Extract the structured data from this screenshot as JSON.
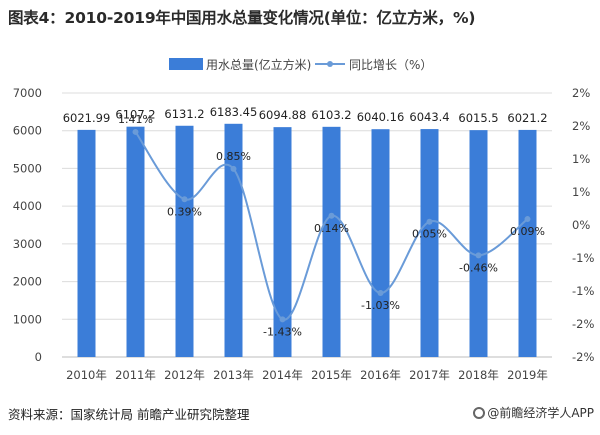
{
  "title": "图表4：2010-2019年中国用水总量变化情况(单位：亿立方米，%)",
  "footer": {
    "source": "资料来源：国家统计局 前瞻产业研究院整理",
    "brand": "@前瞻经济学人APP"
  },
  "colors": {
    "bar": "#3b7dd8",
    "line": "#6a9bd8",
    "grid": "#dcdcdc",
    "axis_text": "#444444"
  },
  "chart_data": {
    "type": "bar",
    "categories": [
      "2010年",
      "2011年",
      "2012年",
      "2013年",
      "2014年",
      "2015年",
      "2016年",
      "2017年",
      "2018年",
      "2019年"
    ],
    "series": [
      {
        "name": "用水总量(亿立方米)",
        "type": "bar",
        "axis": "left",
        "values": [
          6021.99,
          6107.2,
          6131.2,
          6183.45,
          6094.88,
          6103.2,
          6040.16,
          6043.4,
          6015.5,
          6021.2
        ],
        "labels": [
          "6021.99",
          "6107.2",
          "6131.2",
          "6183.45",
          "6094.88",
          "6103.2",
          "6040.16",
          "6043.4",
          "6015.5",
          "6021.2"
        ]
      },
      {
        "name": "同比增长（%）",
        "type": "line",
        "axis": "right",
        "values": [
          null,
          1.41,
          0.39,
          0.85,
          -1.43,
          0.14,
          -1.03,
          0.05,
          -0.46,
          0.09
        ],
        "labels": [
          "",
          "1.41%",
          "0.39%",
          "0.85%",
          "-1.43%",
          "0.14%",
          "-1.03%",
          "0.05%",
          "-0.46%",
          "0.09%"
        ]
      }
    ],
    "y_left": {
      "min": 0,
      "max": 7000,
      "ticks": [
        0,
        1000,
        2000,
        3000,
        4000,
        5000,
        6000,
        7000
      ],
      "tick_labels": [
        "0",
        "1000",
        "2000",
        "3000",
        "4000",
        "5000",
        "6000",
        "7000"
      ]
    },
    "y_right": {
      "min": -2,
      "max": 2,
      "ticks": [
        -2,
        -1.5,
        -1,
        -0.5,
        0,
        0.5,
        1,
        1.5,
        2
      ],
      "tick_labels": [
        "-2%",
        "-2%",
        "-1%",
        "-1%",
        "0%",
        "1%",
        "1%",
        "2%",
        "2%"
      ]
    },
    "grid": true,
    "legend": "top-center"
  }
}
